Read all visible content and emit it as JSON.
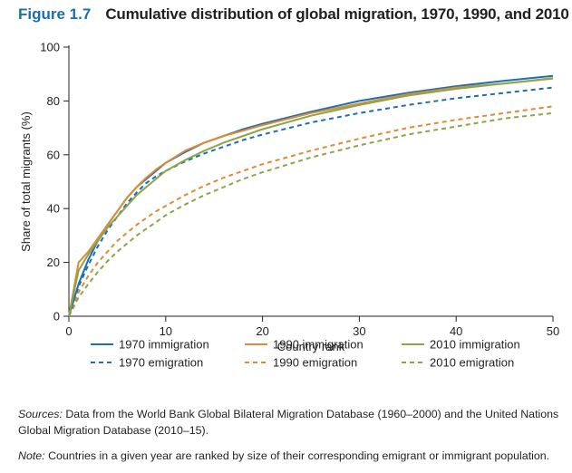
{
  "figure": {
    "label": "Figure 1.7",
    "title": "Cumulative distribution of global migration, 1970, 1990, and 2010"
  },
  "sources": {
    "lead": "Sources:",
    "text": " Data from the World Bank Global Bilateral Migration Database (1960–2000) and the United Nations Global Migration Database (2010–15)."
  },
  "note": {
    "lead": "Note:",
    "text": " Countries in a given year are ranked by size of their corresponding emigrant or immigrant population."
  },
  "colors": {
    "c1970": "#1f6db3",
    "c1990": "#e08a34",
    "c2010": "#8aa64a",
    "axis": "#231f20"
  },
  "chart_data": {
    "type": "line",
    "title": "Cumulative distribution of global migration, 1970, 1990, and 2010",
    "xlabel": "Country rank",
    "ylabel": "Share of total migrants (%)",
    "xlim": [
      0,
      50
    ],
    "ylim": [
      0,
      100
    ],
    "xticks": [
      0,
      10,
      20,
      30,
      40,
      50
    ],
    "yticks": [
      0,
      20,
      40,
      60,
      80,
      100
    ],
    "grid": false,
    "legend_position": "bottom",
    "x": [
      0,
      1,
      2,
      3,
      4,
      5,
      6,
      7,
      8,
      9,
      10,
      12,
      14,
      16,
      18,
      20,
      25,
      30,
      35,
      40,
      45,
      50
    ],
    "series": [
      {
        "name": "1970 immigration",
        "color": "#1f6db3",
        "dash": "solid",
        "values": [
          0,
          12,
          21,
          28,
          34,
          39,
          44,
          48,
          51,
          54,
          57,
          61,
          64.5,
          67,
          69.5,
          71.5,
          76,
          80,
          83,
          85.5,
          87.5,
          89.3
        ]
      },
      {
        "name": "1990 immigration",
        "color": "#e08a34",
        "dash": "solid",
        "values": [
          0,
          20,
          24,
          29,
          34,
          39,
          44,
          48,
          51.5,
          54.5,
          57,
          61.5,
          64.5,
          67,
          69,
          71,
          75.5,
          79,
          82.5,
          85,
          86.5,
          88.3
        ]
      },
      {
        "name": "2010 immigration",
        "color": "#8aa64a",
        "dash": "solid",
        "values": [
          0,
          17,
          23,
          28,
          33,
          37,
          41,
          45,
          48,
          51,
          54,
          58,
          61.5,
          64.5,
          67,
          69.5,
          74.5,
          78.5,
          82,
          84.5,
          86.5,
          88.5
        ]
      },
      {
        "name": "1970 emigration",
        "color": "#1f6db3",
        "dash": "dashed",
        "values": [
          0,
          11,
          19,
          26,
          32,
          37,
          42,
          46,
          49.5,
          52,
          54,
          57.5,
          60.5,
          63,
          65.5,
          67.5,
          72,
          75.5,
          78.5,
          81,
          83,
          85
        ]
      },
      {
        "name": "1990 emigration",
        "color": "#e08a34",
        "dash": "dashed",
        "values": [
          0,
          9,
          15,
          20,
          24,
          28,
          31,
          34,
          36.5,
          39,
          41,
          45,
          48.5,
          51.5,
          54,
          56.5,
          61.5,
          66,
          70,
          73,
          75.5,
          78
        ]
      },
      {
        "name": "2010 emigration",
        "color": "#8aa64a",
        "dash": "dashed",
        "values": [
          0,
          7,
          12,
          16.5,
          20.5,
          24,
          27,
          30,
          32.5,
          35,
          37.5,
          41.5,
          45,
          48,
          51,
          53.5,
          59,
          63.5,
          67.5,
          70.5,
          73.5,
          75.5
        ]
      }
    ]
  }
}
